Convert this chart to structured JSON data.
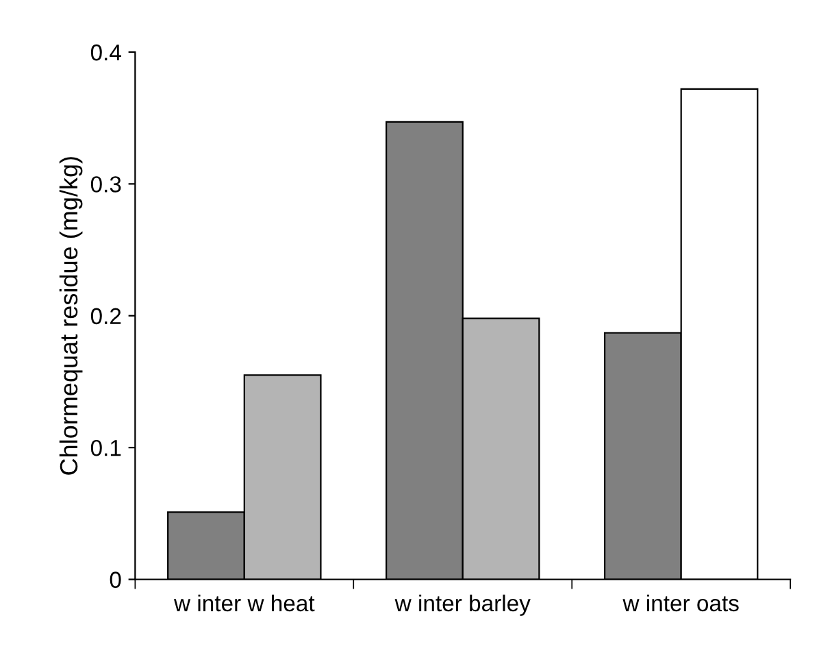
{
  "chart_data": {
    "type": "bar",
    "ylabel": "Chlormequat residue (mg/kg)",
    "categories": [
      "w inter w heat",
      "w inter barley",
      "w inter oats"
    ],
    "series": [
      {
        "color": "#808080",
        "values": [
          0.051,
          0.347,
          0.187
        ]
      },
      {
        "colors": [
          "#b4b4b4",
          "#b4b4b4",
          "#ffffff"
        ],
        "values": [
          0.155,
          0.198,
          0.372
        ]
      }
    ],
    "ylim": [
      0,
      0.4
    ],
    "yticks": [
      0,
      0.1,
      0.2,
      0.3,
      0.4
    ],
    "grid": false,
    "legend": false
  }
}
